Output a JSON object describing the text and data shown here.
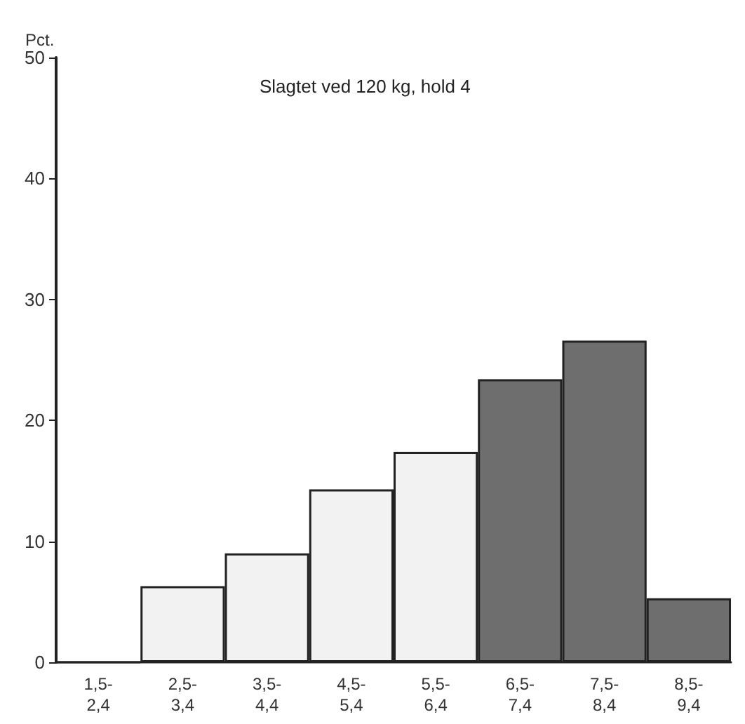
{
  "chart_data": {
    "type": "bar",
    "title": "Slagtet ved 120 kg, hold 4",
    "ylabel": "Pct.",
    "categories": [
      "1,5-\n2,4",
      "2,5-\n3,4",
      "3,5-\n4,4",
      "4,5-\n5,4",
      "5,5-\n6,4",
      "6,5-\n7,4",
      "7,5-\n8,4",
      "8,5-\n9,4"
    ],
    "values": [
      0,
      6.3,
      9,
      14.3,
      17.4,
      23.4,
      26.6,
      5.3
    ],
    "colors": [
      "#f2f2f2",
      "#f2f2f2",
      "#f2f2f2",
      "#f2f2f2",
      "#f2f2f2",
      "#6e6e6e",
      "#6e6e6e",
      "#6e6e6e"
    ],
    "ylim": [
      0,
      50
    ],
    "yticks": [
      0,
      10,
      20,
      30,
      40,
      50
    ]
  }
}
